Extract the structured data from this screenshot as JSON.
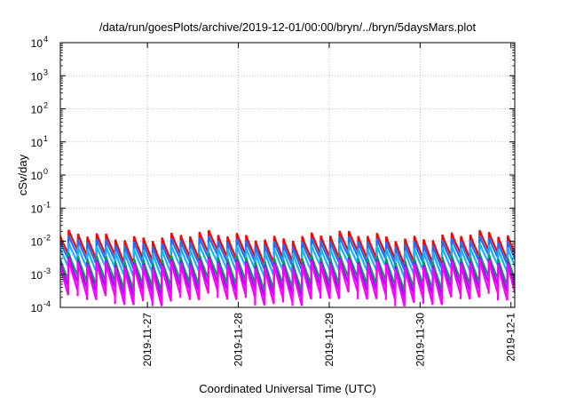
{
  "chart_data": {
    "type": "line",
    "title": "/data/run/goesPlots/archive/2019-12-01/00:00/bryn/../bryn/5daysMars.plot",
    "xlabel": "Coordinated Universal Time (UTC)",
    "ylabel": "cSv/day",
    "yscale": "log",
    "ylim": [
      0.0001,
      10000
    ],
    "y_ticks": [
      {
        "value": 0.0001,
        "base": "10",
        "exp": "-4"
      },
      {
        "value": 0.001,
        "base": "10",
        "exp": "-3"
      },
      {
        "value": 0.01,
        "base": "10",
        "exp": "-2"
      },
      {
        "value": 0.1,
        "base": "10",
        "exp": "-1"
      },
      {
        "value": 1,
        "base": "10",
        "exp": "0"
      },
      {
        "value": 10,
        "base": "10",
        "exp": "1"
      },
      {
        "value": 100,
        "base": "10",
        "exp": "2"
      },
      {
        "value": 1000,
        "base": "10",
        "exp": "3"
      },
      {
        "value": 10000,
        "base": "10",
        "exp": "4"
      }
    ],
    "xlim": [
      "2019-11-26T01:00",
      "2019-12-01T01:00"
    ],
    "x_ticks": [
      "2019-11-27",
      "2019-11-28",
      "2019-11-29",
      "2019-11-30",
      "2019-12-1"
    ],
    "x_tick_dates": [
      "2019-11-27T00:00",
      "2019-11-28T00:00",
      "2019-11-29T00:00",
      "2019-11-30T00:00",
      "2019-12-01T00:00"
    ],
    "grid": true,
    "sawtooth_period_hours": 2.4667,
    "series": [
      {
        "color": "#ff0000",
        "peak": 0.012,
        "trough": 0.0031,
        "peak_range": [
          0.0095,
          0.022
        ]
      },
      {
        "color": "#1f6fff",
        "peak": 0.0085,
        "trough": 0.0022,
        "peak_range": [
          0.0065,
          0.015
        ]
      },
      {
        "color": "#19b2ff",
        "peak": 0.0055,
        "trough": 0.0013,
        "peak_range": [
          0.0042,
          0.009
        ]
      },
      {
        "color": "#00a050",
        "peak": 0.0028,
        "trough": 0.0005,
        "peak_range": [
          0.0021,
          0.0045
        ]
      },
      {
        "color": "#a000ff",
        "peak": 0.0021,
        "trough": 0.00032,
        "peak_range": [
          0.0016,
          0.0034
        ]
      },
      {
        "color": "#ff00ff",
        "peak": 0.0019,
        "trough": 0.00018,
        "peak_range": [
          0.0014,
          0.003
        ]
      }
    ]
  }
}
